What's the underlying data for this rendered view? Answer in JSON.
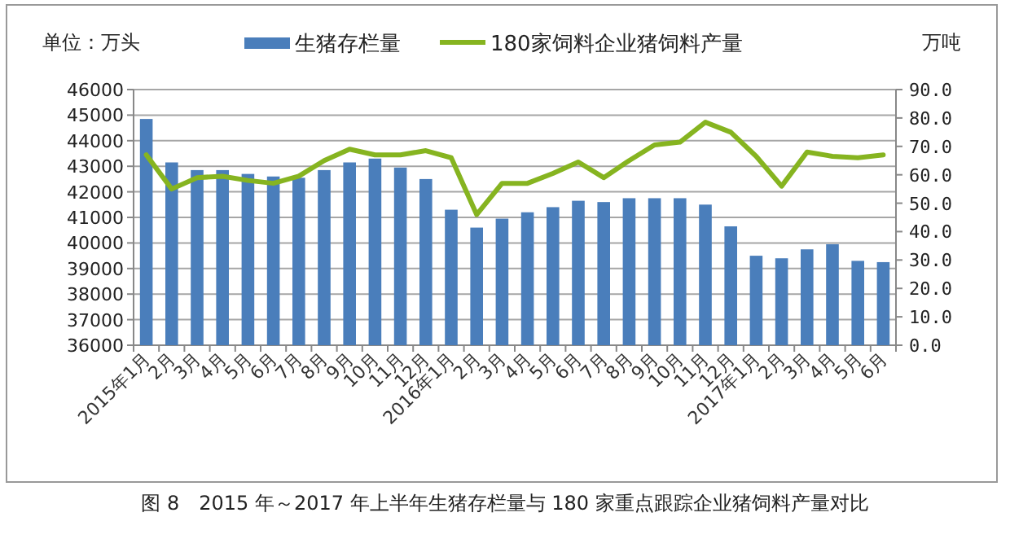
{
  "chart_data": {
    "type": "bar",
    "ylabel": "单位：万头",
    "y2label": "万吨",
    "annotations": [
      "图 8　2015 年～2017 年上半年生猪存栏量与 180 家重点跟踪企业猪饲料产量对比"
    ],
    "categories": [
      "2015年1月",
      "2月",
      "3月",
      "4月",
      "5月",
      "6月",
      "7月",
      "8月",
      "9月",
      "10月",
      "11月",
      "12月",
      "2016年1月",
      "2月",
      "3月",
      "4月",
      "5月",
      "6月",
      "7月",
      "8月",
      "9月",
      "10月",
      "11月",
      "12月",
      "2017年1月",
      "2月",
      "3月",
      "4月",
      "5月",
      "6月"
    ],
    "series": [
      {
        "name": "生猪存栏量",
        "color": "#4a7ebb",
        "values": [
          44850,
          43150,
          42850,
          42850,
          42700,
          42600,
          42550,
          42850,
          43150,
          43300,
          42950,
          42500,
          41300,
          40600,
          40950,
          41200,
          41400,
          41650,
          41600,
          41750,
          41750,
          41750,
          41500,
          40650,
          39500,
          39400,
          39750,
          39950,
          39300,
          39250
        ]
      },
      {
        "name": "180家饲料企业猪饲料产量",
        "type": "line",
        "axis": "y2",
        "color": "#86b420",
        "values": [
          67,
          55,
          59,
          59.5,
          58,
          57,
          59.5,
          65,
          69,
          67,
          67,
          68.5,
          66,
          46,
          57,
          57,
          60.5,
          64.5,
          59,
          65,
          70.5,
          71.5,
          78.5,
          75,
          66.5,
          56,
          68,
          66.5,
          66,
          67
        ]
      }
    ],
    "ylim": [
      36000,
      46000
    ],
    "yticks": [
      36000,
      37000,
      38000,
      39000,
      40000,
      41000,
      42000,
      43000,
      44000,
      45000,
      46000
    ],
    "y2lim": [
      0,
      90
    ],
    "y2ticks": [
      {
        "value": 0,
        "label": "0.0"
      },
      {
        "value": 10,
        "label": "10.0"
      },
      {
        "value": 20,
        "label": "20.0"
      },
      {
        "value": 30,
        "label": "30.0"
      },
      {
        "value": 40,
        "label": "40.0"
      },
      {
        "value": 50,
        "label": "50.0"
      },
      {
        "value": 60,
        "label": "60.0"
      },
      {
        "value": 70,
        "label": "70.0"
      },
      {
        "value": 80,
        "label": "80.0"
      },
      {
        "value": 90,
        "label": "90.0"
      }
    ],
    "grid": "y",
    "legend": "top"
  }
}
